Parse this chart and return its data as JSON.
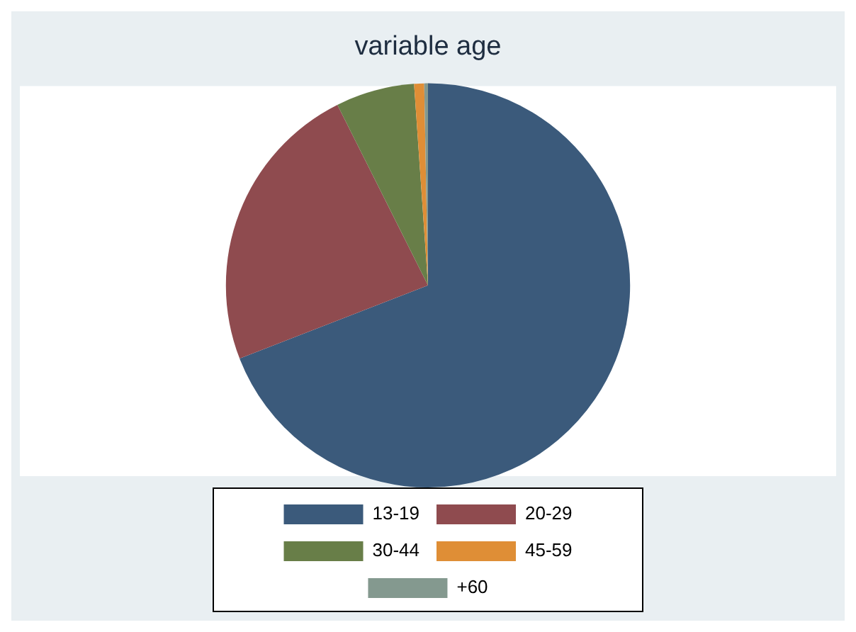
{
  "chart_data": {
    "type": "pie",
    "title": "variable age",
    "categories": [
      "13-19",
      "20-29",
      "30-44",
      "45-59",
      "+60"
    ],
    "values": [
      69.1,
      23.5,
      6.3,
      0.8,
      0.3
    ],
    "colors": [
      "#3b5a7b",
      "#8f4b4f",
      "#687e48",
      "#df8e36",
      "#84998f"
    ],
    "legend": "bottom"
  }
}
